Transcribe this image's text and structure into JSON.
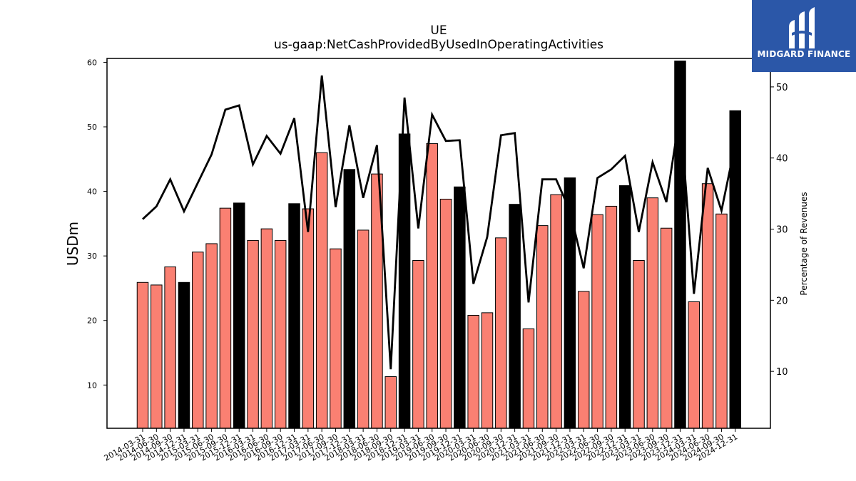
{
  "brand": {
    "name": "MIDGARD FINANCE",
    "bg_color": "#2b57a8"
  },
  "chart_data": {
    "type": "bar",
    "title": "UE",
    "subtitle": "us-gaap:NetCashProvidedByUsedInOperatingActivities",
    "ylabel": "USDm",
    "y2label": "Percentage of Revenues",
    "ylim": [
      3.3,
      60.6
    ],
    "y2lim": [
      2,
      54
    ],
    "yticks": [
      10,
      20,
      30,
      40,
      50,
      60
    ],
    "y2ticks": [
      10,
      20,
      30,
      40,
      50
    ],
    "bar_colors": {
      "default": "#fa8072",
      "highlight": "#000000"
    },
    "categories": [
      "2014-03-31",
      "2014-06-30",
      "2014-09-30",
      "2014-12-31",
      "2015-03-31",
      "2015-06-30",
      "2015-09-30",
      "2015-12-31",
      "2016-03-31",
      "2016-06-30",
      "2016-09-30",
      "2016-12-31",
      "2017-03-31",
      "2017-06-30",
      "2017-09-30",
      "2017-12-31",
      "2018-03-31",
      "2018-06-30",
      "2018-09-30",
      "2018-12-31",
      "2019-03-31",
      "2019-06-30",
      "2019-09-30",
      "2019-12-31",
      "2020-03-31",
      "2020-06-30",
      "2020-09-30",
      "2020-12-31",
      "2021-03-31",
      "2021-06-30",
      "2021-09-30",
      "2021-12-31",
      "2022-03-31",
      "2022-06-30",
      "2022-09-30",
      "2022-12-31",
      "2023-03-31",
      "2023-06-30",
      "2023-09-30",
      "2023-12-31",
      "2024-03-31",
      "2024-06-30",
      "2024-09-30",
      "2024-12-31"
    ],
    "series": [
      {
        "type": "bar",
        "values": [
          25.9,
          25.5,
          28.3,
          25.9,
          30.6,
          31.9,
          37.4,
          38.2,
          32.4,
          34.2,
          32.4,
          38.1,
          37.3,
          46.0,
          31.1,
          43.4,
          34.0,
          42.7,
          11.3,
          48.9,
          29.3,
          47.4,
          38.8,
          40.7,
          20.8,
          21.2,
          32.8,
          38.0,
          18.7,
          34.7,
          39.5,
          42.1,
          24.5,
          36.4,
          37.7,
          40.9,
          29.3,
          39.0,
          34.3,
          60.2,
          22.9,
          41.2,
          36.5,
          52.5
        ],
        "highlighted": [
          false,
          false,
          false,
          true,
          false,
          false,
          false,
          true,
          false,
          false,
          false,
          true,
          false,
          false,
          false,
          true,
          false,
          false,
          false,
          true,
          false,
          false,
          false,
          true,
          false,
          false,
          false,
          true,
          false,
          false,
          false,
          true,
          false,
          false,
          false,
          true,
          false,
          false,
          false,
          true,
          false,
          false,
          false,
          true
        ]
      },
      {
        "type": "line",
        "axis": "secondary",
        "color": "#000000",
        "values": [
          31.4,
          33.2,
          37.0,
          32.5,
          36.5,
          40.5,
          46.8,
          47.4,
          39.1,
          43.1,
          40.6,
          45.6,
          29.6,
          51.6,
          33.1,
          44.6,
          34.4,
          41.8,
          10.3,
          48.5,
          30.1,
          46.1,
          42.4,
          42.5,
          22.3,
          28.9,
          43.2,
          43.5,
          19.7,
          37.0,
          37.0,
          32.6,
          24.5,
          37.2,
          38.4,
          40.3,
          29.6,
          39.4,
          33.8,
          46.5,
          20.9,
          38.6,
          32.6,
          42.0
        ]
      }
    ],
    "grid": false,
    "legend": "none"
  }
}
